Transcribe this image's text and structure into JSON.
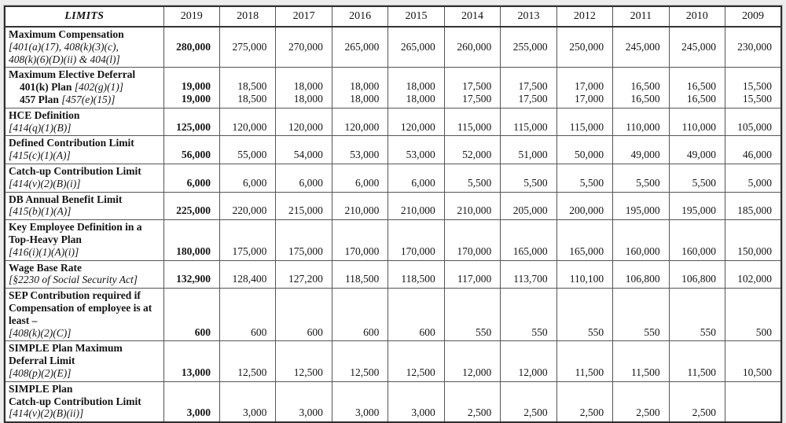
{
  "table": {
    "header": {
      "limits": "LIMITS",
      "years": [
        "2019",
        "2018",
        "2017",
        "2016",
        "2015",
        "2014",
        "2013",
        "2012",
        "2011",
        "2010",
        "2009"
      ]
    },
    "rows": [
      {
        "name": "row-maximum-compensation",
        "label": [
          {
            "text": "Maximum Compensation",
            "bold": true
          },
          {
            "cite": "[401(a)(17), 408(k)(3)(c),"
          },
          {
            "cite": "408(k)(6)(D)(ii) & 404(l)]"
          }
        ],
        "valign": "middle",
        "values": [
          [
            "280,000"
          ],
          [
            "275,000"
          ],
          [
            "270,000"
          ],
          [
            "265,000"
          ],
          [
            "265,000"
          ],
          [
            "260,000"
          ],
          [
            "255,000"
          ],
          [
            "250,000"
          ],
          [
            "245,000"
          ],
          [
            "245,000"
          ],
          [
            "230,000"
          ]
        ]
      },
      {
        "name": "row-maximum-elective-deferral",
        "label": [
          {
            "text": "Maximum Elective Deferral",
            "bold": true
          },
          {
            "text": "401(k) Plan ",
            "bold": true,
            "indent": true,
            "cite": "[402(g)(1)]"
          },
          {
            "text": "457 Plan ",
            "bold": true,
            "indent": true,
            "cite": "[457(e)(15)]"
          }
        ],
        "valign": "bottom",
        "values": [
          [
            "19,000",
            "19,000"
          ],
          [
            "18,500",
            "18,500"
          ],
          [
            "18,000",
            "18,000"
          ],
          [
            "18,000",
            "18,000"
          ],
          [
            "18,000",
            "18,000"
          ],
          [
            "17,500",
            "17,500"
          ],
          [
            "17,500",
            "17,500"
          ],
          [
            "17,000",
            "17,000"
          ],
          [
            "16,500",
            "16,500"
          ],
          [
            "16,500",
            "16,500"
          ],
          [
            "15,500",
            "15,500"
          ]
        ]
      },
      {
        "name": "row-hce-definition",
        "label": [
          {
            "text": "HCE Definition",
            "bold": true
          },
          {
            "cite": "[414(q)(1)(B)]"
          }
        ],
        "valign": "bottom",
        "values": [
          [
            "125,000"
          ],
          [
            "120,000"
          ],
          [
            "120,000"
          ],
          [
            "120,000"
          ],
          [
            "120,000"
          ],
          [
            "115,000"
          ],
          [
            "115,000"
          ],
          [
            "115,000"
          ],
          [
            "110,000"
          ],
          [
            "110,000"
          ],
          [
            "105,000"
          ]
        ]
      },
      {
        "name": "row-defined-contribution-limit",
        "label": [
          {
            "text": "Defined Contribution Limit",
            "bold": true
          },
          {
            "cite": "[415(c)(1)(A)]"
          }
        ],
        "valign": "bottom",
        "values": [
          [
            "56,000"
          ],
          [
            "55,000"
          ],
          [
            "54,000"
          ],
          [
            "53,000"
          ],
          [
            "53,000"
          ],
          [
            "52,000"
          ],
          [
            "51,000"
          ],
          [
            "50,000"
          ],
          [
            "49,000"
          ],
          [
            "49,000"
          ],
          [
            "46,000"
          ]
        ]
      },
      {
        "name": "row-catch-up-contribution-limit",
        "label": [
          {
            "text": "Catch-up Contribution Limit",
            "bold": true
          },
          {
            "cite": "[414(v)(2)(B)(i)]"
          }
        ],
        "valign": "bottom",
        "values": [
          [
            "6,000"
          ],
          [
            "6,000"
          ],
          [
            "6,000"
          ],
          [
            "6,000"
          ],
          [
            "6,000"
          ],
          [
            "5,500"
          ],
          [
            "5,500"
          ],
          [
            "5,500"
          ],
          [
            "5,500"
          ],
          [
            "5,500"
          ],
          [
            "5,000"
          ]
        ]
      },
      {
        "name": "row-db-annual-benefit-limit",
        "label": [
          {
            "text": "DB Annual Benefit Limit",
            "bold": true
          },
          {
            "cite": "[415(b)(1)(A)]"
          }
        ],
        "valign": "bottom",
        "values": [
          [
            "225,000"
          ],
          [
            "220,000"
          ],
          [
            "215,000"
          ],
          [
            "210,000"
          ],
          [
            "210,000"
          ],
          [
            "210,000"
          ],
          [
            "205,000"
          ],
          [
            "200,000"
          ],
          [
            "195,000"
          ],
          [
            "195,000"
          ],
          [
            "185,000"
          ]
        ]
      },
      {
        "name": "row-key-employee-definition",
        "label": [
          {
            "text": "Key Employee Definition in a",
            "bold": true
          },
          {
            "text": "Top-Heavy Plan",
            "bold": true
          },
          {
            "cite": "[416(i)(1)(A)(i)]"
          }
        ],
        "valign": "bottom",
        "values": [
          [
            "180,000"
          ],
          [
            "175,000"
          ],
          [
            "175,000"
          ],
          [
            "170,000"
          ],
          [
            "170,000"
          ],
          [
            "170,000"
          ],
          [
            "165,000"
          ],
          [
            "165,000"
          ],
          [
            "160,000"
          ],
          [
            "160,000"
          ],
          [
            "150,000"
          ]
        ]
      },
      {
        "name": "row-wage-base-rate",
        "label": [
          {
            "text": "Wage Base Rate",
            "bold": true
          },
          {
            "cite": "[§2230 of Social Security Act]"
          }
        ],
        "valign": "bottom",
        "values": [
          [
            "132,900"
          ],
          [
            "128,400"
          ],
          [
            "127,200"
          ],
          [
            "118,500"
          ],
          [
            "118,500"
          ],
          [
            "117,000"
          ],
          [
            "113,700"
          ],
          [
            "110,100"
          ],
          [
            "106,800"
          ],
          [
            "106,800"
          ],
          [
            "102,000"
          ]
        ]
      },
      {
        "name": "row-sep-contribution-required",
        "label": [
          {
            "text": "SEP Contribution required if",
            "bold": true
          },
          {
            "text": "Compensation of employee is at",
            "bold": true
          },
          {
            "text": "least –",
            "bold": true
          },
          {
            "cite": "[408(k)(2)(C)]"
          }
        ],
        "valign": "bottom",
        "values": [
          [
            "600"
          ],
          [
            "600"
          ],
          [
            "600"
          ],
          [
            "600"
          ],
          [
            "600"
          ],
          [
            "550"
          ],
          [
            "550"
          ],
          [
            "550"
          ],
          [
            "550"
          ],
          [
            "550"
          ],
          [
            "500"
          ]
        ]
      },
      {
        "name": "row-simple-plan-maximum-deferral-limit",
        "label": [
          {
            "text": "SIMPLE Plan Maximum",
            "bold": true
          },
          {
            "text": "Deferral Limit",
            "bold": true
          },
          {
            "cite": "[408(p)(2)(E)]"
          }
        ],
        "valign": "bottom",
        "values": [
          [
            "13,000"
          ],
          [
            "12,500"
          ],
          [
            "12,500"
          ],
          [
            "12,500"
          ],
          [
            "12,500"
          ],
          [
            "12,000"
          ],
          [
            "12,000"
          ],
          [
            "11,500"
          ],
          [
            "11,500"
          ],
          [
            "11,500"
          ],
          [
            "10,500"
          ]
        ]
      },
      {
        "name": "row-simple-plan-catch-up-contribution-limit",
        "label": [
          {
            "text": "SIMPLE Plan",
            "bold": true
          },
          {
            "text": "Catch-up Contribution Limit",
            "bold": true
          },
          {
            "cite": "[414(v)(2)(B)(ii)]"
          }
        ],
        "valign": "bottom",
        "values": [
          [
            "3,000"
          ],
          [
            "3,000"
          ],
          [
            "3,000"
          ],
          [
            "3,000"
          ],
          [
            "3,000"
          ],
          [
            "2,500"
          ],
          [
            "2,500"
          ],
          [
            "2,500"
          ],
          [
            "2,500"
          ],
          [
            "2,500"
          ],
          [
            ""
          ]
        ]
      }
    ]
  }
}
